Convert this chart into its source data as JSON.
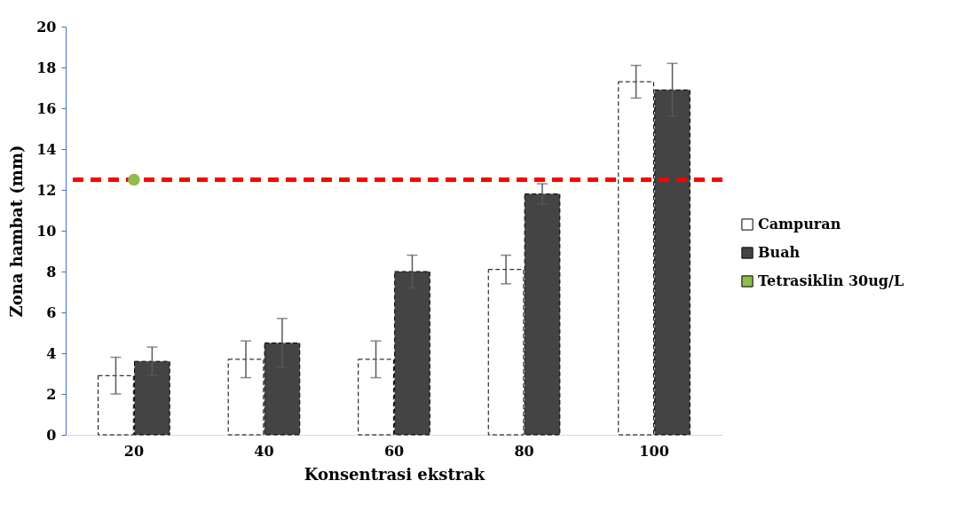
{
  "chart_data": {
    "type": "bar",
    "xlabel": "Konsentrasi ekstrak",
    "ylabel": "Zona hambat (mm)",
    "categories": [
      "20",
      "40",
      "60",
      "80",
      "100"
    ],
    "series": [
      {
        "name": "Campuran",
        "color": "#ffffff",
        "values": [
          2.9,
          3.7,
          3.7,
          8.1,
          17.3
        ],
        "errors": [
          0.9,
          0.9,
          0.9,
          0.7,
          0.8
        ]
      },
      {
        "name": "Buah",
        "color": "#444444",
        "values": [
          3.6,
          4.5,
          8.0,
          11.8,
          16.9
        ],
        "errors": [
          0.7,
          1.2,
          0.8,
          0.5,
          1.3
        ]
      },
      {
        "name": "Tetrasiklin 30ug/L",
        "type": "scatter",
        "color": "#8fbc4a",
        "marker": "circle",
        "values": [
          12.5,
          null,
          null,
          null,
          null
        ]
      }
    ],
    "ref_lines": [
      {
        "axis": "y",
        "value": 12.5,
        "color": "#ff0000",
        "line_style": "dashed"
      }
    ],
    "ylim": [
      0,
      20
    ],
    "yticks": [
      0,
      2,
      4,
      6,
      8,
      10,
      12,
      14,
      16,
      18,
      20
    ],
    "grid": false,
    "legend": "right"
  }
}
